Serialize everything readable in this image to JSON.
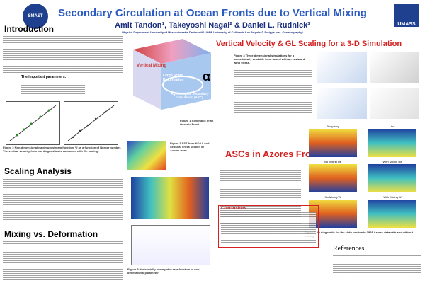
{
  "header": {
    "title": "Secondary Circulation at Ocean Fronts due to Vertical Mixing",
    "authors": "Amit Tandon¹, Takeyoshi Nagai² & Daniel L. Rudnick³",
    "affiliation": "Physics Department University of Massachusetts Dartmouth¹, IGPP University of California Los Angeles², Scripps Inst. Oceanography³",
    "logo_left": "SMAST",
    "logo_right": "UMASS"
  },
  "sections": {
    "intro": "Introduction",
    "params": "The important parameters:",
    "scaling": "Scaling Analysis",
    "mixing": "Mixing vs. Deformation",
    "vertical": "Vertical Velocity & GL Scaling for a 3-D Simulation",
    "azores": "ASCs in Azores Front",
    "conclusions": "Conclusions",
    "references": "References"
  },
  "figure1": {
    "mixing": "Vertical Mixing",
    "deformation": "Large Scale Deformation",
    "asc": "Ageostrophic Secondary Circulation (ASC)",
    "alpha": "α",
    "caption": "Figure 1 Schematic of an Oceanic Front"
  },
  "captions": {
    "fig2": "Figure 2 Non-dimensional maximum stream function, Ψ as a function of Burger number. The vertical velocity from our diagnostics is compared with GL scaling.",
    "fig3": "Figure 3 SST from NOAA and SeaSoar cross section of Azores front",
    "fig4": "Figure 4 Three dimensional simulations for a baroclinically unstable front forced with an eastward wind stress.",
    "fig5": "Figure 5 Horizontally averaged w as a function of non-dimensional parameter",
    "fig6": "Figure 6 3D diagnostic for the sixth section in 1991 Azores data with and without mixing."
  },
  "panels": [
    "Buoyancy",
    "Av",
    "No Mixing Ue",
    "With Mixing Ue",
    "No Mixing W",
    "With Mixing W"
  ]
}
